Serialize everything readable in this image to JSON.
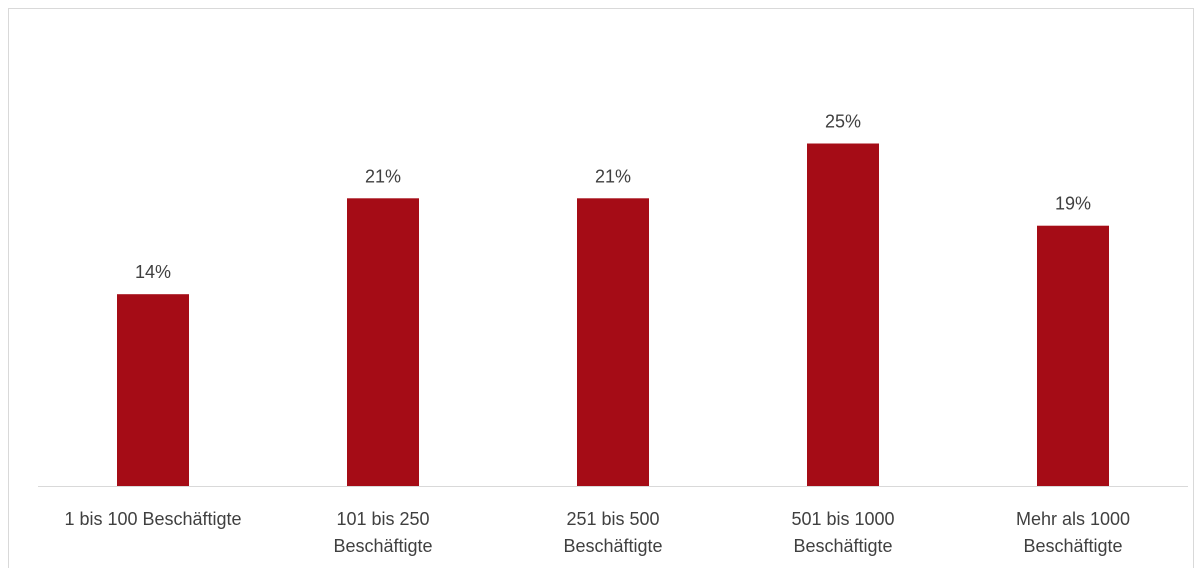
{
  "chart_data": {
    "type": "bar",
    "categories": [
      [
        "1 bis 100 Beschäftigte"
      ],
      [
        "101 bis 250",
        "Beschäftigte"
      ],
      [
        "251 bis 500",
        "Beschäftigte"
      ],
      [
        "501 bis 1000",
        "Beschäftigte"
      ],
      [
        "Mehr als 1000",
        "Beschäftigte"
      ]
    ],
    "values": [
      14,
      21,
      21,
      25,
      19
    ],
    "data_labels": [
      "14%",
      "21%",
      "21%",
      "25%",
      "19%"
    ],
    "value_unit": "%",
    "ylim": [
      0,
      28
    ],
    "y_axis_visible": false,
    "grid": false,
    "legend": "none",
    "bar_color": "#A50C16",
    "axis_color": "#d9d9d9",
    "text_color": "#404040"
  }
}
